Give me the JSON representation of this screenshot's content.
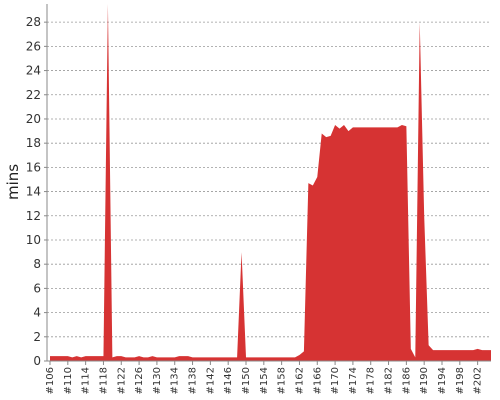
{
  "chart_data": {
    "type": "area",
    "title": "",
    "xlabel": "",
    "ylabel": "mins",
    "ylim": [
      0,
      29.5
    ],
    "grid": true,
    "legend": "none",
    "yticks": [
      0,
      2,
      4,
      6,
      8,
      10,
      12,
      14,
      16,
      18,
      20,
      22,
      24,
      26,
      28
    ],
    "x_tick_labels": [
      "#106",
      "#110",
      "#114",
      "#118",
      "#122",
      "#126",
      "#130",
      "#134",
      "#138",
      "#142",
      "#146",
      "#150",
      "#154",
      "#158",
      "#162",
      "#166",
      "#170",
      "#174",
      "#178",
      "#182",
      "#186",
      "#190",
      "#194",
      "#198",
      "#202"
    ],
    "series": [
      {
        "color": "#d63333",
        "x": [
          106,
          107,
          108,
          109,
          110,
          111,
          112,
          113,
          114,
          115,
          116,
          117,
          118,
          119,
          120,
          121,
          122,
          123,
          124,
          125,
          126,
          127,
          128,
          129,
          130,
          131,
          132,
          133,
          134,
          135,
          136,
          137,
          138,
          139,
          140,
          141,
          142,
          143,
          144,
          145,
          146,
          147,
          148,
          149,
          150,
          151,
          152,
          153,
          154,
          155,
          156,
          157,
          158,
          159,
          160,
          161,
          162,
          163,
          164,
          165,
          166,
          167,
          168,
          169,
          170,
          171,
          172,
          173,
          174,
          175,
          176,
          177,
          178,
          179,
          180,
          181,
          182,
          183,
          184,
          185,
          186,
          187,
          188,
          189,
          190,
          191,
          192,
          193,
          194,
          195,
          196,
          197,
          198,
          199,
          200,
          201,
          202,
          203,
          204,
          205
        ],
        "values": [
          0.4,
          0.4,
          0.4,
          0.4,
          0.4,
          0.3,
          0.4,
          0.3,
          0.4,
          0.4,
          0.4,
          0.4,
          0.4,
          30,
          0.3,
          0.4,
          0.4,
          0.3,
          0.3,
          0.3,
          0.4,
          0.3,
          0.3,
          0.4,
          0.3,
          0.3,
          0.3,
          0.3,
          0.3,
          0.4,
          0.4,
          0.4,
          0.3,
          0.3,
          0.3,
          0.3,
          0.3,
          0.3,
          0.3,
          0.3,
          0.3,
          0.3,
          0.3,
          9,
          0.3,
          0.3,
          0.3,
          0.3,
          0.3,
          0.3,
          0.3,
          0.3,
          0.3,
          0.3,
          0.3,
          0.3,
          0.5,
          0.8,
          14.7,
          14.5,
          15.2,
          18.8,
          18.5,
          18.6,
          19.5,
          19.2,
          19.5,
          19.0,
          19.3,
          19.3,
          19.3,
          19.3,
          19.3,
          19.3,
          19.3,
          19.3,
          19.3,
          19.3,
          19.3,
          19.5,
          19.4,
          1.0,
          0.3,
          28,
          12,
          1.3,
          0.9,
          0.9,
          0.9,
          0.9,
          0.9,
          0.9,
          0.9,
          0.9,
          0.9,
          0.9,
          1.0,
          0.9,
          0.9,
          0.9
        ]
      }
    ]
  }
}
